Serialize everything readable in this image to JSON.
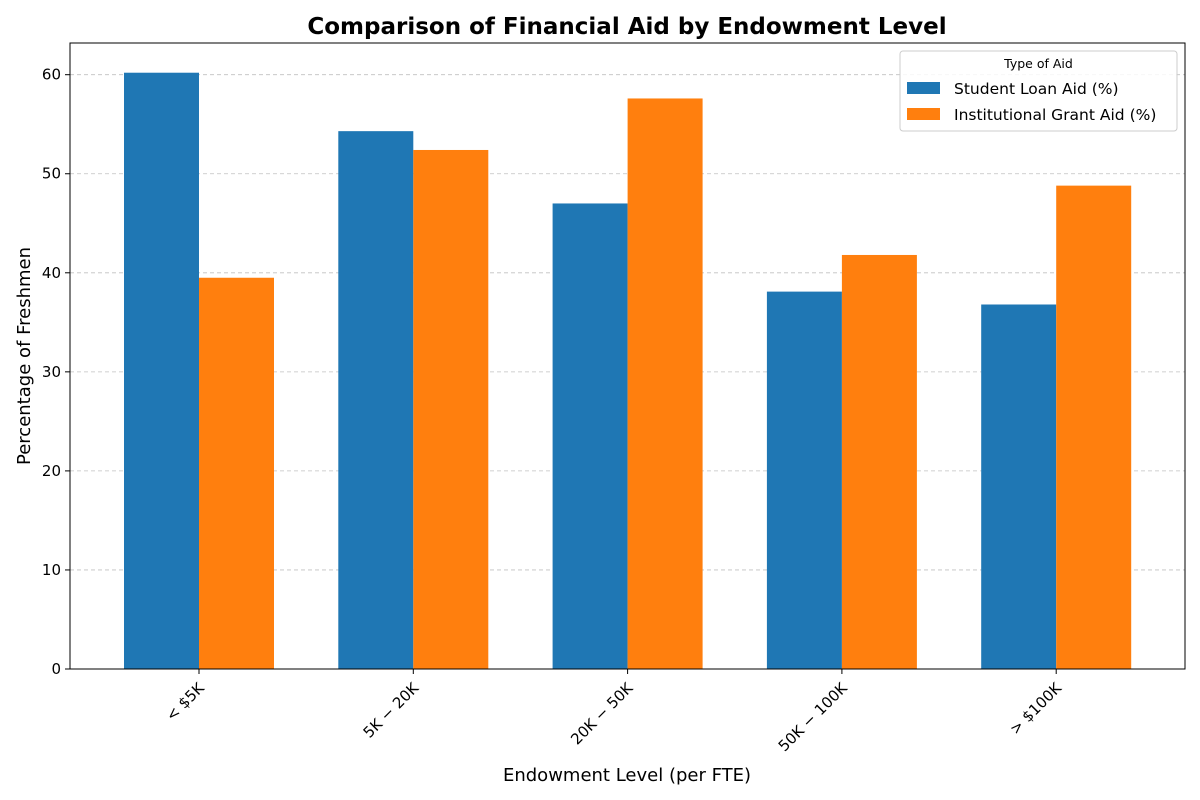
{
  "chart_data": {
    "type": "bar",
    "title": "Comparison of Financial Aid by Endowment Level",
    "xlabel": "Endowment Level (per FTE)",
    "ylabel": "Percentage of Freshmen",
    "categories": [
      "< $5K",
      "$5K - $20K",
      "$20K - $50K",
      "$50K - $100K",
      "> $100K"
    ],
    "category_tick_text": [
      "< $5K",
      "5K − 20K",
      "20K − 50K",
      "50K − 100K",
      "> $100K"
    ],
    "series": [
      {
        "name": "Student Loan Aid (%)",
        "color": "#1f77b4",
        "values": [
          60.2,
          54.3,
          47.0,
          38.1,
          36.8
        ]
      },
      {
        "name": "Institutional Grant Aid (%)",
        "color": "#ff7f0e",
        "values": [
          39.5,
          52.4,
          57.6,
          41.8,
          48.8
        ]
      }
    ],
    "ylim": [
      0,
      63.2
    ],
    "yticks": [
      0,
      10,
      20,
      30,
      40,
      50,
      60
    ],
    "grid": {
      "y": true,
      "style": "dashed",
      "color": "#c0c0c0"
    },
    "legend": {
      "title": "Type of Aid",
      "position": "top-right"
    },
    "x_tick_rotation_deg": 45
  }
}
